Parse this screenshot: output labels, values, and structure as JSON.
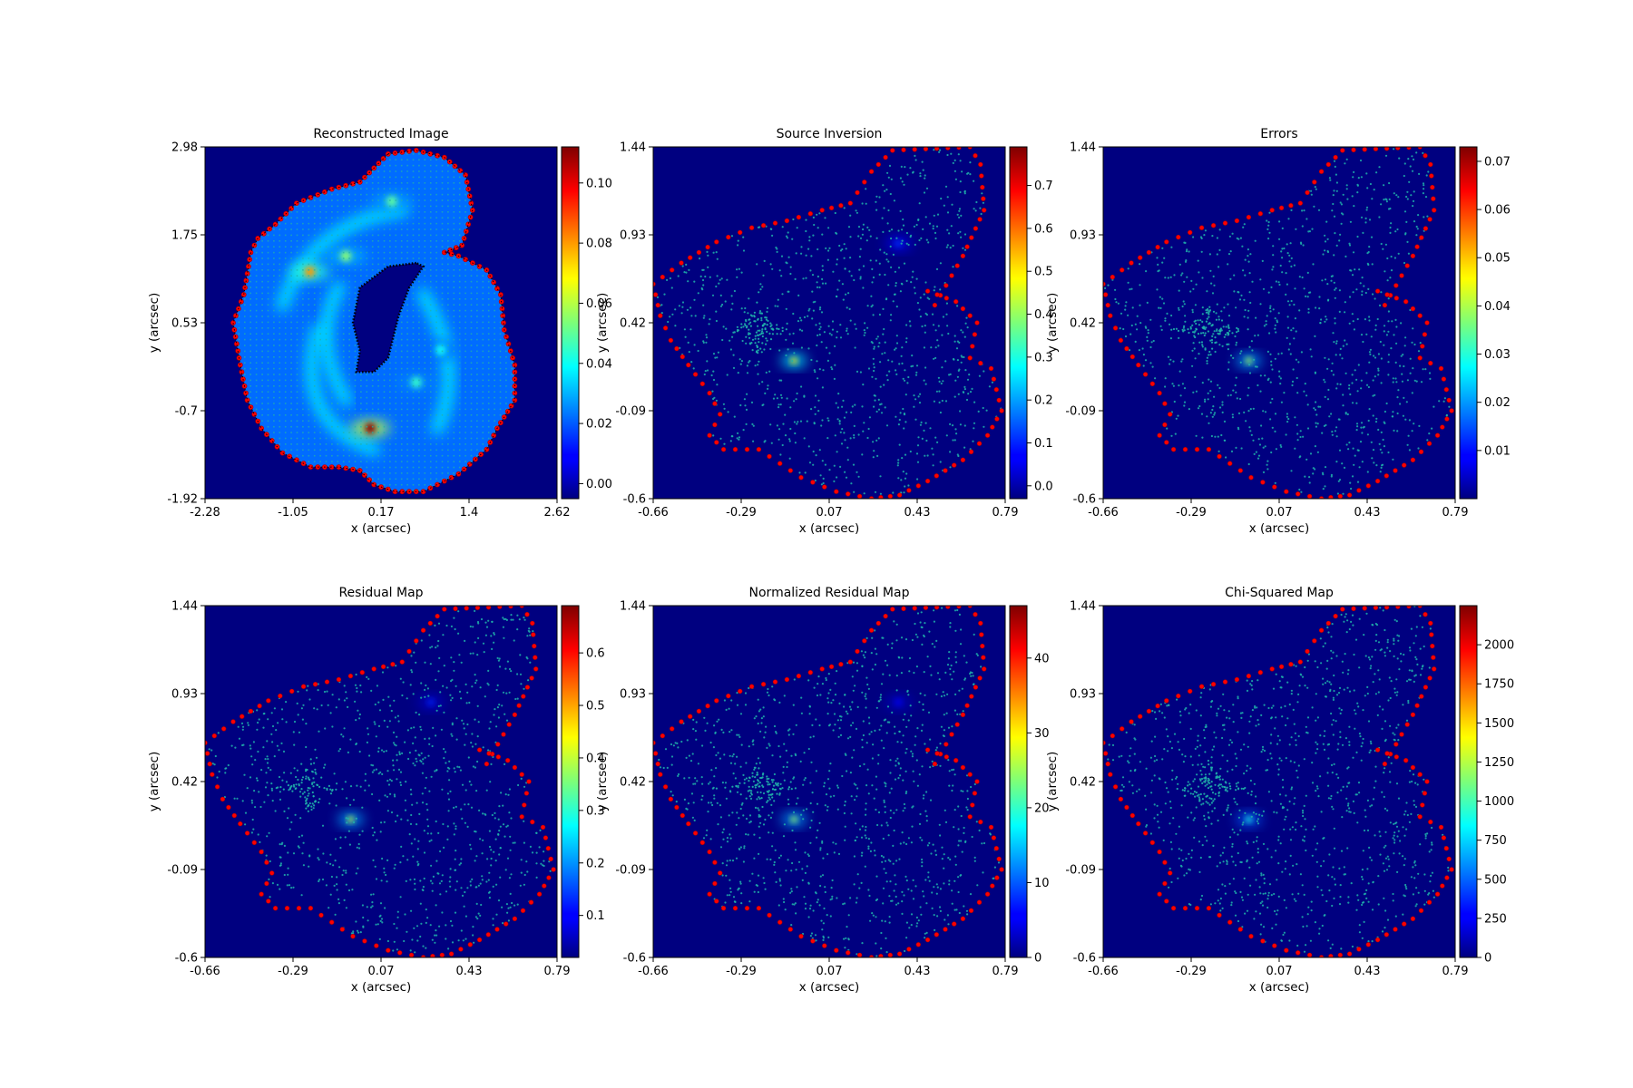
{
  "chart_data": [
    {
      "type": "heatmap",
      "title": "Reconstructed Image",
      "xlabel": "x (arcsec)",
      "ylabel": "y (arcsec)",
      "xticks": [
        "-2.28",
        "-1.05",
        "0.17",
        "1.4",
        "2.62"
      ],
      "yticks": [
        "2.98",
        "1.75",
        "0.53",
        "-0.7",
        "-1.92"
      ],
      "xlim": [
        -2.28,
        2.62
      ],
      "ylim": [
        -1.92,
        2.98
      ],
      "colorbar": {
        "min": -0.005,
        "max": 0.112,
        "ticks": [
          "0.00",
          "0.02",
          "0.04",
          "0.06",
          "0.08",
          "0.10"
        ],
        "tick_values": [
          0.0,
          0.02,
          0.04,
          0.06,
          0.08,
          0.1
        ]
      },
      "colormap": "jet",
      "background_value": 0.022,
      "mask_border_color": "#ff0000",
      "grid_point_color": "#20b2aa",
      "features": [
        {
          "x": -0.82,
          "y": 1.24,
          "value": 0.08
        },
        {
          "x": -0.32,
          "y": 1.46,
          "value": 0.055
        },
        {
          "x": 0.32,
          "y": 2.22,
          "value": 0.05
        },
        {
          "x": 0.02,
          "y": -0.94,
          "value": 0.11
        },
        {
          "x": 0.66,
          "y": -0.3,
          "value": 0.045
        },
        {
          "x": 1.0,
          "y": 0.15,
          "value": 0.04
        }
      ]
    },
    {
      "type": "heatmap",
      "title": "Source Inversion",
      "xlabel": "x (arcsec)",
      "ylabel": "y (arcsec)",
      "xticks": [
        "-0.66",
        "-0.29",
        "0.07",
        "0.43",
        "0.79"
      ],
      "yticks": [
        "1.44",
        "0.93",
        "0.42",
        "-0.09",
        "-0.6"
      ],
      "xlim": [
        -0.66,
        0.79
      ],
      "ylim": [
        -0.6,
        1.44
      ],
      "colorbar": {
        "min": -0.03,
        "max": 0.79,
        "ticks": [
          "0.0",
          "0.1",
          "0.2",
          "0.3",
          "0.4",
          "0.5",
          "0.6",
          "0.7"
        ],
        "tick_values": [
          0.0,
          0.1,
          0.2,
          0.3,
          0.4,
          0.5,
          0.6,
          0.7
        ]
      },
      "colormap": "jet",
      "features": [
        {
          "x": -0.08,
          "y": 0.2,
          "value": 0.5
        },
        {
          "x": 0.35,
          "y": 0.88,
          "value": 0.12
        }
      ]
    },
    {
      "type": "heatmap",
      "title": "Errors",
      "xlabel": "x (arcsec)",
      "ylabel": "y (arcsec)",
      "xticks": [
        "-0.66",
        "-0.29",
        "0.07",
        "0.43",
        "0.79"
      ],
      "yticks": [
        "1.44",
        "0.93",
        "0.42",
        "-0.09",
        "-0.6"
      ],
      "xlim": [
        -0.66,
        0.79
      ],
      "ylim": [
        -0.6,
        1.44
      ],
      "colorbar": {
        "min": 0.0,
        "max": 0.073,
        "ticks": [
          "0.01",
          "0.02",
          "0.03",
          "0.04",
          "0.05",
          "0.06",
          "0.07"
        ],
        "tick_values": [
          0.01,
          0.02,
          0.03,
          0.04,
          0.05,
          0.06,
          0.07
        ]
      },
      "colormap": "jet",
      "features": [
        {
          "x": -0.06,
          "y": 0.2,
          "value": 0.04
        }
      ]
    },
    {
      "type": "heatmap",
      "title": "Residual Map",
      "xlabel": "x (arcsec)",
      "ylabel": "y (arcsec)",
      "xticks": [
        "-0.66",
        "-0.29",
        "0.07",
        "0.43",
        "0.79"
      ],
      "yticks": [
        "1.44",
        "0.93",
        "0.42",
        "-0.09",
        "-0.6"
      ],
      "xlim": [
        -0.66,
        0.79
      ],
      "ylim": [
        -0.6,
        1.44
      ],
      "colorbar": {
        "min": 0.02,
        "max": 0.69,
        "ticks": [
          "0.1",
          "0.2",
          "0.3",
          "0.4",
          "0.5",
          "0.6"
        ],
        "tick_values": [
          0.1,
          0.2,
          0.3,
          0.4,
          0.5,
          0.6
        ]
      },
      "colormap": "jet",
      "features": [
        {
          "x": -0.06,
          "y": 0.2,
          "value": 0.4
        },
        {
          "x": 0.27,
          "y": 0.88,
          "value": 0.13
        }
      ]
    },
    {
      "type": "heatmap",
      "title": "Normalized Residual Map",
      "xlabel": "x (arcsec)",
      "ylabel": "y (arcsec)",
      "xticks": [
        "-0.66",
        "-0.29",
        "0.07",
        "0.43",
        "0.79"
      ],
      "yticks": [
        "1.44",
        "0.93",
        "0.42",
        "-0.09",
        "-0.6"
      ],
      "xlim": [
        -0.66,
        0.79
      ],
      "ylim": [
        -0.6,
        1.44
      ],
      "colorbar": {
        "min": 0.0,
        "max": 47.0,
        "ticks": [
          "0",
          "10",
          "20",
          "30",
          "40"
        ],
        "tick_values": [
          0,
          10,
          20,
          30,
          40
        ]
      },
      "colormap": "jet",
      "features": [
        {
          "x": -0.08,
          "y": 0.2,
          "value": 25
        },
        {
          "x": 0.35,
          "y": 0.88,
          "value": 6
        }
      ]
    },
    {
      "type": "heatmap",
      "title": "Chi-Squared Map",
      "xlabel": "x (arcsec)",
      "ylabel": "y (arcsec)",
      "xticks": [
        "-0.66",
        "-0.29",
        "0.07",
        "0.43",
        "0.79"
      ],
      "yticks": [
        "1.44",
        "0.93",
        "0.42",
        "-0.09",
        "-0.6"
      ],
      "xlim": [
        -0.66,
        0.79
      ],
      "ylim": [
        -0.6,
        1.44
      ],
      "colorbar": {
        "min": 0,
        "max": 2250,
        "ticks": [
          "0",
          "250",
          "500",
          "750",
          "1000",
          "1250",
          "1500",
          "1750",
          "2000"
        ],
        "tick_values": [
          0,
          250,
          500,
          750,
          1000,
          1250,
          1500,
          1750,
          2000
        ]
      },
      "colormap": "jet",
      "features": [
        {
          "x": -0.06,
          "y": 0.2,
          "value": 900
        }
      ]
    }
  ]
}
